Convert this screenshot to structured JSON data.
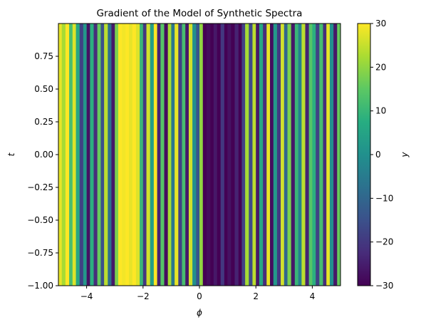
{
  "chart_data": {
    "type": "heatmap",
    "title": "Gradient of the Model of Synthetic Spectra",
    "xlabel": "ϕ",
    "ylabel": "t",
    "colorbar_label": "y",
    "colormap": "viridis",
    "xlim": [
      -5,
      5
    ],
    "ylim": [
      -1,
      1
    ],
    "clim": [
      -30,
      30
    ],
    "x_ticks": [
      -4,
      -2,
      0,
      2,
      4
    ],
    "x_tick_labels": [
      "−4",
      "−2",
      "0",
      "2",
      "4"
    ],
    "y_ticks": [
      -1.0,
      -0.75,
      -0.5,
      -0.25,
      0.0,
      0.25,
      0.5,
      0.75
    ],
    "y_tick_labels": [
      "−1.00",
      "−0.75",
      "−0.50",
      "−0.25",
      "0.00",
      "0.25",
      "0.50",
      "0.75"
    ],
    "colorbar_ticks": [
      -30,
      -20,
      -10,
      0,
      10,
      20,
      30
    ],
    "colorbar_tick_labels": [
      "−30",
      "−20",
      "−10",
      "0",
      "10",
      "20",
      "30"
    ],
    "note_values": "z is constant along t; each band spans [x_start, x_end] in ϕ units with gradient value y",
    "bands": [
      {
        "x_start": -5.0,
        "x_end": -4.88,
        "y": 28
      },
      {
        "x_start": -4.88,
        "x_end": -4.75,
        "y": 22
      },
      {
        "x_start": -4.75,
        "x_end": -4.62,
        "y": 30
      },
      {
        "x_start": -4.62,
        "x_end": -4.5,
        "y": 12
      },
      {
        "x_start": -4.5,
        "x_end": -4.38,
        "y": 27
      },
      {
        "x_start": -4.38,
        "x_end": -4.25,
        "y": 6
      },
      {
        "x_start": -4.25,
        "x_end": -4.12,
        "y": -18
      },
      {
        "x_start": -4.12,
        "x_end": -4.0,
        "y": 2
      },
      {
        "x_start": -4.0,
        "x_end": -3.88,
        "y": -27
      },
      {
        "x_start": -3.88,
        "x_end": -3.75,
        "y": 8
      },
      {
        "x_start": -3.75,
        "x_end": -3.62,
        "y": -22
      },
      {
        "x_start": -3.62,
        "x_end": -3.5,
        "y": 16
      },
      {
        "x_start": -3.5,
        "x_end": -3.38,
        "y": -15
      },
      {
        "x_start": -3.38,
        "x_end": -3.25,
        "y": 24
      },
      {
        "x_start": -3.25,
        "x_end": -3.12,
        "y": -8
      },
      {
        "x_start": -3.12,
        "x_end": -3.0,
        "y": -26
      },
      {
        "x_start": -3.0,
        "x_end": -2.88,
        "y": 18
      },
      {
        "x_start": -2.88,
        "x_end": -2.75,
        "y": 30
      },
      {
        "x_start": -2.75,
        "x_end": -2.62,
        "y": 29
      },
      {
        "x_start": -2.62,
        "x_end": -2.5,
        "y": 30
      },
      {
        "x_start": -2.5,
        "x_end": -2.38,
        "y": 28
      },
      {
        "x_start": -2.38,
        "x_end": -2.25,
        "y": 30
      },
      {
        "x_start": -2.25,
        "x_end": -2.12,
        "y": 27
      },
      {
        "x_start": -2.12,
        "x_end": -2.0,
        "y": 10
      },
      {
        "x_start": -2.0,
        "x_end": -1.88,
        "y": -20
      },
      {
        "x_start": -1.88,
        "x_end": -1.75,
        "y": 26
      },
      {
        "x_start": -1.75,
        "x_end": -1.62,
        "y": 4
      },
      {
        "x_start": -1.62,
        "x_end": -1.5,
        "y": 30
      },
      {
        "x_start": -1.5,
        "x_end": -1.38,
        "y": -24
      },
      {
        "x_start": -1.38,
        "x_end": -1.25,
        "y": 14
      },
      {
        "x_start": -1.25,
        "x_end": -1.12,
        "y": -28
      },
      {
        "x_start": -1.12,
        "x_end": -1.0,
        "y": 22
      },
      {
        "x_start": -1.0,
        "x_end": -0.88,
        "y": -6
      },
      {
        "x_start": -0.88,
        "x_end": -0.75,
        "y": 28
      },
      {
        "x_start": -0.75,
        "x_end": -0.62,
        "y": -18
      },
      {
        "x_start": -0.62,
        "x_end": -0.5,
        "y": 12
      },
      {
        "x_start": -0.5,
        "x_end": -0.38,
        "y": -26
      },
      {
        "x_start": -0.38,
        "x_end": -0.25,
        "y": 26
      },
      {
        "x_start": -0.25,
        "x_end": -0.12,
        "y": 0
      },
      {
        "x_start": -0.12,
        "x_end": 0.0,
        "y": -14
      },
      {
        "x_start": 0.0,
        "x_end": 0.12,
        "y": 20
      },
      {
        "x_start": 0.12,
        "x_end": 0.25,
        "y": -30
      },
      {
        "x_start": 0.25,
        "x_end": 0.38,
        "y": -28
      },
      {
        "x_start": 0.38,
        "x_end": 0.5,
        "y": -30
      },
      {
        "x_start": 0.5,
        "x_end": 0.62,
        "y": -26
      },
      {
        "x_start": 0.62,
        "x_end": 0.75,
        "y": -30
      },
      {
        "x_start": 0.75,
        "x_end": 0.88,
        "y": -20
      },
      {
        "x_start": 0.88,
        "x_end": 1.0,
        "y": -30
      },
      {
        "x_start": 1.0,
        "x_end": 1.12,
        "y": -27
      },
      {
        "x_start": 1.12,
        "x_end": 1.25,
        "y": -30
      },
      {
        "x_start": 1.25,
        "x_end": 1.38,
        "y": -24
      },
      {
        "x_start": 1.38,
        "x_end": 1.5,
        "y": -30
      },
      {
        "x_start": 1.5,
        "x_end": 1.62,
        "y": -18
      },
      {
        "x_start": 1.62,
        "x_end": 1.75,
        "y": 22
      },
      {
        "x_start": 1.75,
        "x_end": 1.88,
        "y": -16
      },
      {
        "x_start": 1.88,
        "x_end": 2.0,
        "y": 24
      },
      {
        "x_start": 2.0,
        "x_end": 2.12,
        "y": -26
      },
      {
        "x_start": 2.12,
        "x_end": 2.25,
        "y": 6
      },
      {
        "x_start": 2.25,
        "x_end": 2.38,
        "y": -22
      },
      {
        "x_start": 2.38,
        "x_end": 2.5,
        "y": 28
      },
      {
        "x_start": 2.5,
        "x_end": 2.62,
        "y": -28
      },
      {
        "x_start": 2.62,
        "x_end": 2.75,
        "y": 2
      },
      {
        "x_start": 2.75,
        "x_end": 2.88,
        "y": -20
      },
      {
        "x_start": 2.88,
        "x_end": 3.0,
        "y": 26
      },
      {
        "x_start": 3.0,
        "x_end": 3.12,
        "y": -10
      },
      {
        "x_start": 3.12,
        "x_end": 3.25,
        "y": 18
      },
      {
        "x_start": 3.25,
        "x_end": 3.38,
        "y": -26
      },
      {
        "x_start": 3.38,
        "x_end": 3.5,
        "y": 10
      },
      {
        "x_start": 3.5,
        "x_end": 3.62,
        "y": -4
      },
      {
        "x_start": 3.62,
        "x_end": 3.75,
        "y": 24
      },
      {
        "x_start": 3.75,
        "x_end": 3.88,
        "y": -24
      },
      {
        "x_start": 3.88,
        "x_end": 4.0,
        "y": 14
      },
      {
        "x_start": 4.0,
        "x_end": 4.12,
        "y": 8
      },
      {
        "x_start": 4.12,
        "x_end": 4.25,
        "y": -18
      },
      {
        "x_start": 4.25,
        "x_end": 4.38,
        "y": 12
      },
      {
        "x_start": 4.38,
        "x_end": 4.5,
        "y": -22
      },
      {
        "x_start": 4.5,
        "x_end": 4.62,
        "y": 28
      },
      {
        "x_start": 4.62,
        "x_end": 4.75,
        "y": 0
      },
      {
        "x_start": 4.75,
        "x_end": 4.88,
        "y": -26
      },
      {
        "x_start": 4.88,
        "x_end": 5.0,
        "y": 16
      }
    ]
  }
}
